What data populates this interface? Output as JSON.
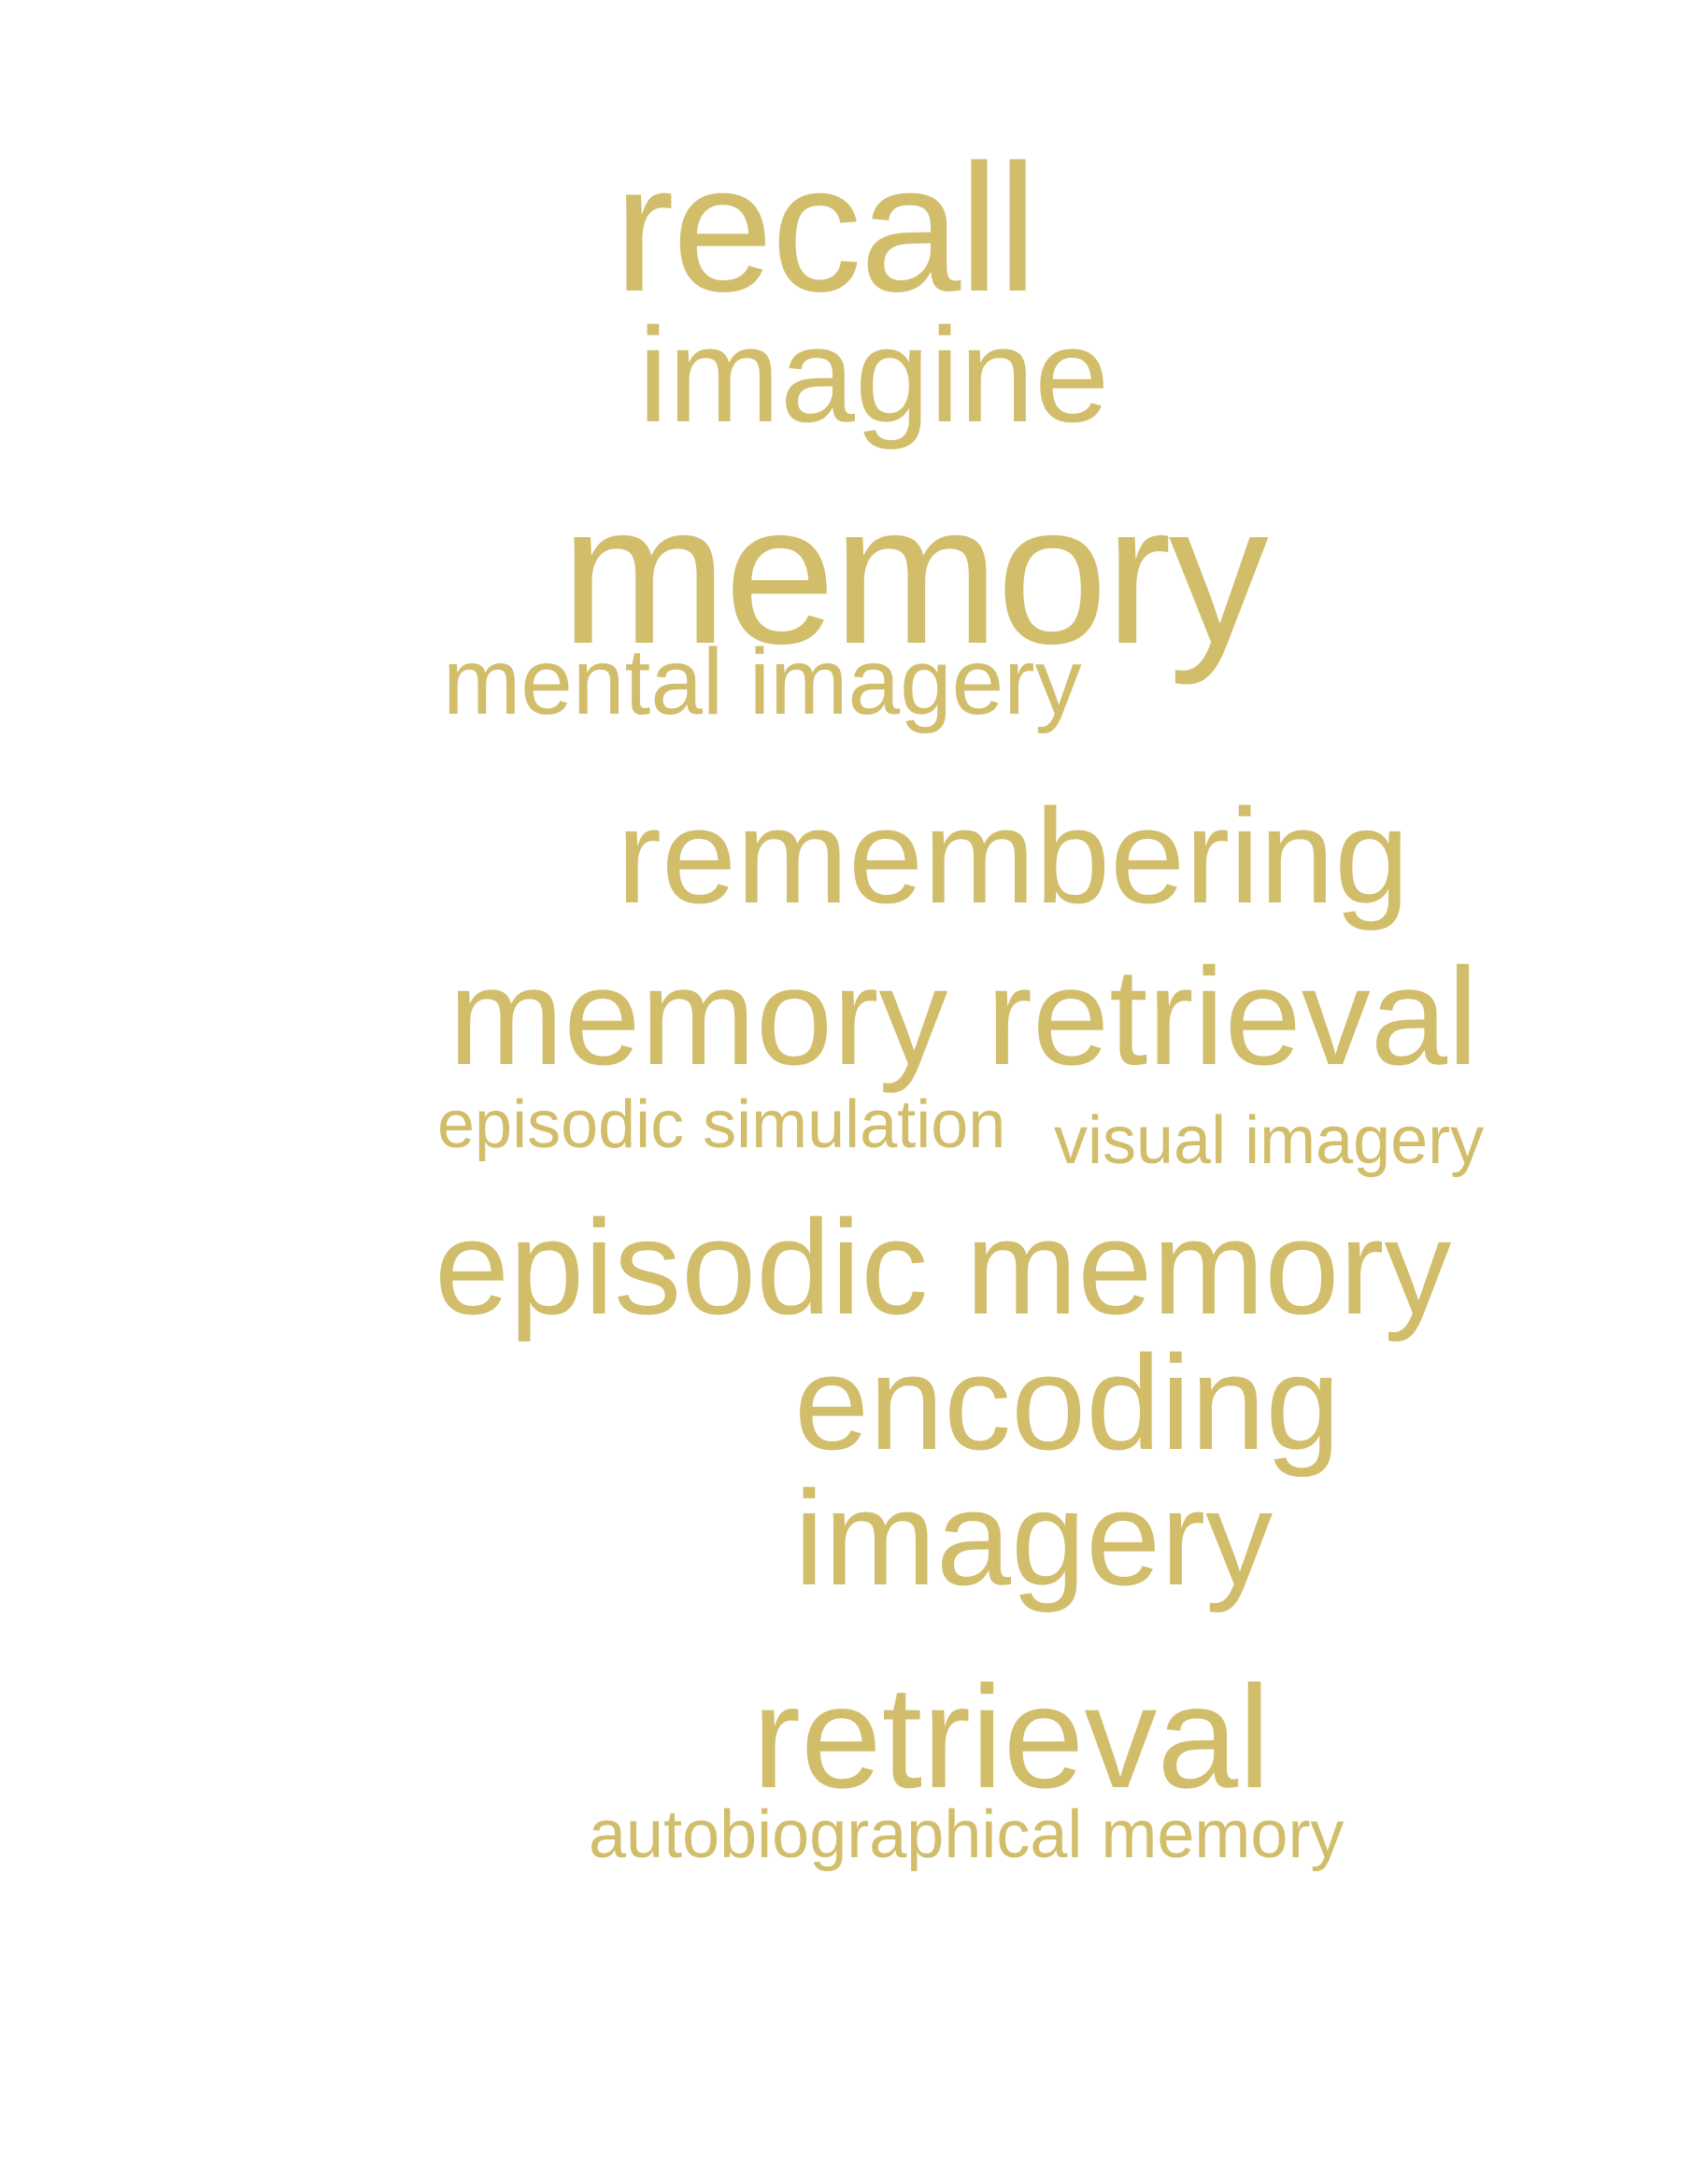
{
  "word_color": "#d1bd6a",
  "words": {
    "recall": "recall",
    "imagine": "imagine",
    "memory": "memory",
    "mental_imagery": "mental imagery",
    "remembering": "remembering",
    "memory_retrieval": "memory retrieval",
    "episodic_simulation": "episodic simulation",
    "visual_imagery": "visual imagery",
    "episodic_memory": "episodic memory",
    "encoding": "encoding",
    "imagery": "imagery",
    "retrieval": "retrieval",
    "autobiographical_memory": "autobiographical memory"
  }
}
